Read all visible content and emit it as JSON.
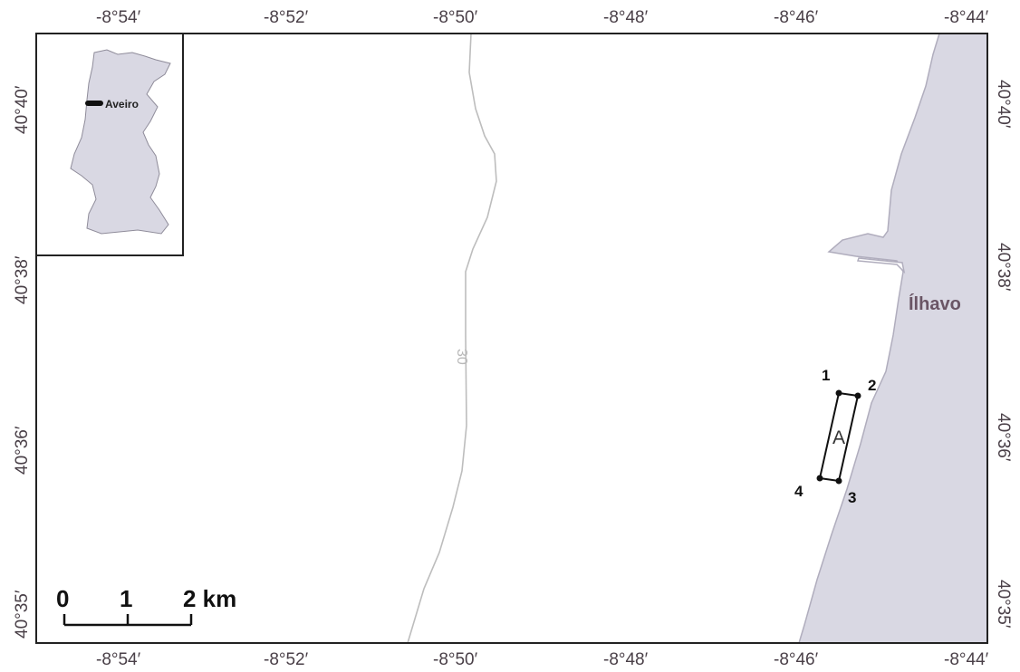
{
  "map": {
    "top_ticks": [
      "-8°54′",
      "-8°52′",
      "-8°50′",
      "-8°48′",
      "-8°46′",
      "-8°44′"
    ],
    "bottom_ticks": [
      "-8°54′",
      "-8°52′",
      "-8°50′",
      "-8°48′",
      "-8°46′",
      "-8°44′"
    ],
    "left_ticks": [
      "40°40′",
      "40°38′",
      "40°36′",
      "40°35′"
    ],
    "right_ticks": [
      "40°40′",
      "40°38′",
      "40°36′",
      "40°35′"
    ],
    "place_label": "Ílhavo",
    "contour_label": "30",
    "area_label": "A",
    "points": [
      "1",
      "2",
      "3",
      "4"
    ],
    "inset_label": "Aveiro",
    "scale_labels": [
      "0",
      "1",
      "2 km"
    ],
    "colors": {
      "land": "#d9d8e3",
      "frame": "#222222",
      "contour": "#bdbdbd"
    }
  }
}
